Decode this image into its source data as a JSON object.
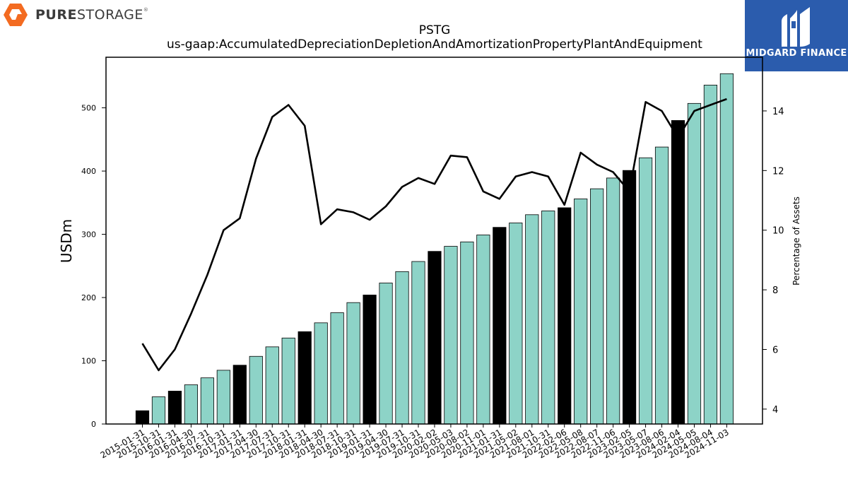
{
  "brand": {
    "left_logo_text_bold": "PURE",
    "left_logo_text_light": "STORAGE",
    "left_logo_mark": "®",
    "right_logo_text": "MIDGARD FINANCE",
    "right_logo_color": "#2b5cad",
    "left_logo_color": "#f36b21"
  },
  "chart_data": {
    "type": "bar",
    "title": "PSTG",
    "subtitle": "us-gaap:AccumulatedDepreciationDepletionAndAmortizationPropertyPlantAndEquipment",
    "ylabel": "USDm",
    "y2label": "Percentage of Assets",
    "ylim": [
      0,
      580
    ],
    "y2lim": [
      3.5,
      15.8
    ],
    "yticks": [
      0,
      100,
      200,
      300,
      400,
      500
    ],
    "y2ticks": [
      4,
      6,
      8,
      10,
      12,
      14
    ],
    "grid": false,
    "colors": {
      "bar": "#8dd3c7",
      "bar_fiscal_year_end": "#000000",
      "line": "#000000"
    },
    "categories": [
      "2015-01-31",
      "2015-10-31",
      "2016-01-31",
      "2016-04-30",
      "2016-07-31",
      "2016-10-31",
      "2017-01-31",
      "2017-04-30",
      "2017-07-31",
      "2017-10-31",
      "2018-01-31",
      "2018-04-30",
      "2018-07-31",
      "2018-10-31",
      "2019-01-31",
      "2019-04-30",
      "2019-07-31",
      "2019-10-31",
      "2020-02-02",
      "2020-05-03",
      "2020-08-02",
      "2020-11-01",
      "2021-01-31",
      "2021-05-02",
      "2021-08-01",
      "2021-10-31",
      "2022-02-06",
      "2022-05-08",
      "2022-08-07",
      "2022-11-06",
      "2023-02-05",
      "2023-05-07",
      "2023-08-06",
      "2024-02-04",
      "2024-05-05",
      "2024-08-04",
      "2024-11-03"
    ],
    "series": [
      {
        "values": [
          21,
          43,
          52,
          62,
          73,
          85,
          93,
          107,
          122,
          136,
          146,
          160,
          176,
          192,
          204,
          223,
          241,
          257,
          273,
          281,
          288,
          299,
          311,
          318,
          331,
          337,
          342,
          356,
          372,
          389,
          401,
          421,
          438,
          480,
          507,
          536,
          554
        ],
        "fiscal_year_end": [
          true,
          false,
          true,
          false,
          false,
          false,
          true,
          false,
          false,
          false,
          true,
          false,
          false,
          false,
          true,
          false,
          false,
          false,
          true,
          false,
          false,
          false,
          true,
          false,
          false,
          false,
          true,
          false,
          false,
          false,
          true,
          false,
          false,
          true,
          false,
          false,
          false
        ]
      },
      {
        "axis": "right",
        "values": [
          6.2,
          5.3,
          6.0,
          7.2,
          8.5,
          10.0,
          10.4,
          12.4,
          13.8,
          14.2,
          13.5,
          10.2,
          10.7,
          10.6,
          10.35,
          10.8,
          11.45,
          11.75,
          11.55,
          12.5,
          12.45,
          11.3,
          11.05,
          11.8,
          11.95,
          11.8,
          10.85,
          12.6,
          12.2,
          11.95,
          11.3,
          14.3,
          14.0,
          13.1,
          14.0,
          14.2,
          14.4
        ]
      }
    ]
  }
}
